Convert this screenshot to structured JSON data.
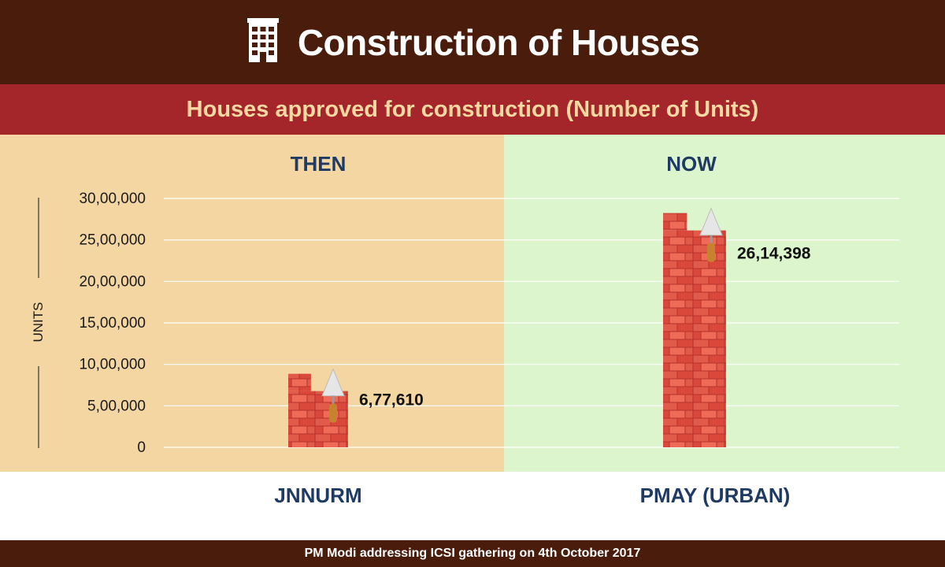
{
  "header": {
    "title": "Construction of Houses",
    "icon": "building-icon"
  },
  "subheader": {
    "title": "Houses approved for construction (Number of Units)"
  },
  "footer": {
    "text": "PM Modi addressing ICSI gathering on 4th October 2017"
  },
  "colors": {
    "header_bg": "#4a1c0c",
    "subheader_bg": "#a4262a",
    "subheader_text": "#f6d8a2",
    "then_bg": "#f3d6a2",
    "now_bg": "#dcf5cc",
    "brick": "#e25a4a",
    "brick_dark": "#b8322c",
    "label_text": "#1f3a63"
  },
  "chart_data": {
    "type": "bar",
    "ylabel": "UNITS",
    "ylim": [
      0,
      3000000
    ],
    "yticks": [
      0,
      500000,
      1000000,
      1500000,
      2000000,
      2500000,
      3000000
    ],
    "ytick_labels": [
      "0",
      "5,00,000",
      "10,00,000",
      "15,00,000",
      "20,00,000",
      "25,00,000",
      "30,00,000"
    ],
    "panels": [
      "THEN",
      "NOW"
    ],
    "categories": [
      "JNNURM",
      "PMAY (URBAN)"
    ],
    "values": [
      677610,
      2614398
    ],
    "value_labels": [
      "6,77,610",
      "26,14,398"
    ],
    "grid": true
  }
}
